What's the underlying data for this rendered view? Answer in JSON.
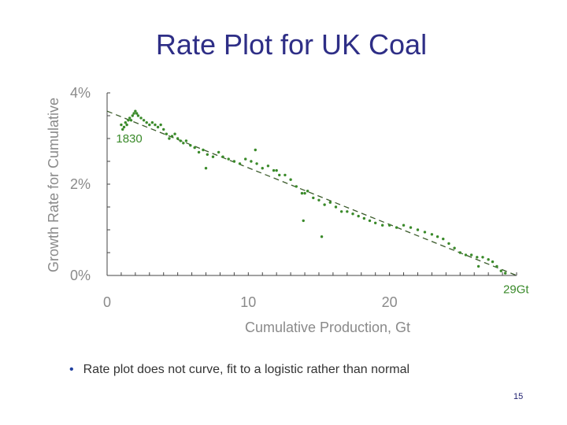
{
  "slide": {
    "title": "Rate Plot for UK Coal",
    "bullet_marker": "•",
    "bullet_text": "Rate plot does not curve, fit to a logistic rather than normal",
    "page_number": "15"
  },
  "chart_data": {
    "type": "scatter",
    "xlabel": "Cumulative Production, Gt",
    "ylabel": "Growth Rate for Cumulative",
    "xlim": [
      0,
      29
    ],
    "ylim": [
      0,
      4
    ],
    "x_ticks": [
      "0",
      "10",
      "20"
    ],
    "y_ticks": [
      "0%",
      "2%",
      "4%"
    ],
    "grid": false,
    "colors": {
      "points": "#3a8a2a",
      "fit": "#3a5a2a",
      "axis": "#444444"
    },
    "annotations": [
      {
        "text": "1830",
        "x": 0.3,
        "y": 3.0
      },
      {
        "text": "29Gt",
        "x": 28.5,
        "y": -0.3
      }
    ],
    "fit_line": {
      "x": [
        0,
        29
      ],
      "y": [
        3.6,
        0
      ]
    },
    "points": [
      [
        1.0,
        3.3
      ],
      [
        1.1,
        3.2
      ],
      [
        1.2,
        3.25
      ],
      [
        1.3,
        3.35
      ],
      [
        1.4,
        3.3
      ],
      [
        1.5,
        3.4
      ],
      [
        1.6,
        3.45
      ],
      [
        1.7,
        3.4
      ],
      [
        1.8,
        3.5
      ],
      [
        1.9,
        3.55
      ],
      [
        2.0,
        3.6
      ],
      [
        2.1,
        3.55
      ],
      [
        2.2,
        3.5
      ],
      [
        2.4,
        3.45
      ],
      [
        2.6,
        3.4
      ],
      [
        2.8,
        3.35
      ],
      [
        3.0,
        3.3
      ],
      [
        3.2,
        3.35
      ],
      [
        3.4,
        3.3
      ],
      [
        3.6,
        3.25
      ],
      [
        3.8,
        3.3
      ],
      [
        4.0,
        3.2
      ],
      [
        4.2,
        3.1
      ],
      [
        4.4,
        3.0
      ],
      [
        4.6,
        3.05
      ],
      [
        4.8,
        3.1
      ],
      [
        5.0,
        3.0
      ],
      [
        5.2,
        2.95
      ],
      [
        5.4,
        2.9
      ],
      [
        5.6,
        2.95
      ],
      [
        5.9,
        2.85
      ],
      [
        6.2,
        2.8
      ],
      [
        6.5,
        2.7
      ],
      [
        6.8,
        2.75
      ],
      [
        7.1,
        2.65
      ],
      [
        7.5,
        2.6
      ],
      [
        7.9,
        2.7
      ],
      [
        8.2,
        2.6
      ],
      [
        8.6,
        2.55
      ],
      [
        9.0,
        2.5
      ],
      [
        9.4,
        2.45
      ],
      [
        9.8,
        2.55
      ],
      [
        10.2,
        2.5
      ],
      [
        10.6,
        2.45
      ],
      [
        11.0,
        2.35
      ],
      [
        11.4,
        2.4
      ],
      [
        11.8,
        2.3
      ],
      [
        12.2,
        2.2
      ],
      [
        12.6,
        2.2
      ],
      [
        13.0,
        2.1
      ],
      [
        13.4,
        1.95
      ],
      [
        13.8,
        1.8
      ],
      [
        14.2,
        1.85
      ],
      [
        14.6,
        1.7
      ],
      [
        15.0,
        1.65
      ],
      [
        15.4,
        1.55
      ],
      [
        15.8,
        1.6
      ],
      [
        16.2,
        1.5
      ],
      [
        16.6,
        1.4
      ],
      [
        17.0,
        1.4
      ],
      [
        17.4,
        1.35
      ],
      [
        17.8,
        1.3
      ],
      [
        18.2,
        1.25
      ],
      [
        18.6,
        1.2
      ],
      [
        19.0,
        1.15
      ],
      [
        19.5,
        1.1
      ],
      [
        20.0,
        1.1
      ],
      [
        20.5,
        1.05
      ],
      [
        21.0,
        1.1
      ],
      [
        21.5,
        1.05
      ],
      [
        22.0,
        1.0
      ],
      [
        22.5,
        0.95
      ],
      [
        23.0,
        0.9
      ],
      [
        23.4,
        0.85
      ],
      [
        23.8,
        0.8
      ],
      [
        24.2,
        0.7
      ],
      [
        24.6,
        0.6
      ],
      [
        25.0,
        0.5
      ],
      [
        25.4,
        0.45
      ],
      [
        25.8,
        0.45
      ],
      [
        26.2,
        0.4
      ],
      [
        26.6,
        0.4
      ],
      [
        27.0,
        0.35
      ],
      [
        27.3,
        0.3
      ],
      [
        27.6,
        0.2
      ],
      [
        27.9,
        0.1
      ],
      [
        28.2,
        0.05
      ],
      [
        7.0,
        2.35
      ],
      [
        10.5,
        2.75
      ],
      [
        12.0,
        2.3
      ],
      [
        13.9,
        1.2
      ],
      [
        15.2,
        0.85
      ],
      [
        14.0,
        1.8
      ],
      [
        26.3,
        0.2
      ]
    ]
  }
}
